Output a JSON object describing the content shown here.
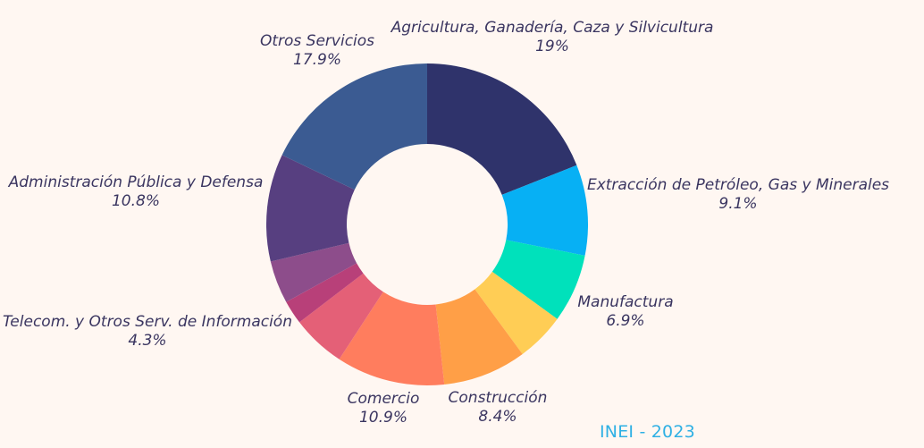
{
  "chart_data": {
    "type": "pie",
    "style": "donut",
    "start_angle_deg": 0,
    "direction": "clockwise",
    "slices": [
      {
        "key": "agricultura",
        "label": "Agricultura, Ganadería, Caza y Silvicultura",
        "value": 19.0,
        "display": "19%",
        "color": "#2f336b"
      },
      {
        "key": "extraccion",
        "label": "Extracción de Petróleo, Gas y Minerales",
        "value": 9.1,
        "display": "9.1%",
        "color": "#07b0f4"
      },
      {
        "key": "manufactura",
        "label": "Manufactura",
        "value": 6.9,
        "display": "6.9%",
        "color": "#00e1bb"
      },
      {
        "key": "electricidad",
        "label": "",
        "value": 4.9,
        "display": "",
        "color": "#ffcd55"
      },
      {
        "key": "construccion",
        "label": "Construcción",
        "value": 8.4,
        "display": "8.4%",
        "color": "#ff9f47"
      },
      {
        "key": "comercio",
        "label": "Comercio",
        "value": 10.9,
        "display": "10.9%",
        "color": "#ff7d5e"
      },
      {
        "key": "transporte",
        "label": "",
        "value": 5.4,
        "display": "",
        "color": "#e46077"
      },
      {
        "key": "alojamiento",
        "label": "",
        "value": 2.4,
        "display": "",
        "color": "#b84079"
      },
      {
        "key": "telecom",
        "label": "Telecom. y Otros Serv. de Información",
        "value": 4.3,
        "display": "4.3%",
        "color": "#8d4d8b"
      },
      {
        "key": "administracion",
        "label": "Administración Pública y Defensa",
        "value": 10.8,
        "display": "10.8%",
        "color": "#573f80"
      },
      {
        "key": "otros",
        "label": "Otros Servicios",
        "value": 17.9,
        "display": "17.9%",
        "color": "#3b5b92"
      }
    ]
  },
  "credit": "INEI - 2023"
}
